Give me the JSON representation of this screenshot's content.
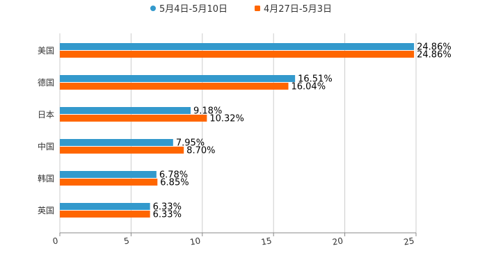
{
  "chart_data": {
    "type": "bar",
    "orientation": "horizontal",
    "categories": [
      "美国",
      "德国",
      "日本",
      "中国",
      "韩国",
      "英国"
    ],
    "series": [
      {
        "name": "5月4日-5月10日",
        "color": "#3399cc",
        "marker": "circle",
        "values": [
          24.86,
          16.51,
          9.18,
          7.95,
          6.78,
          6.33
        ],
        "labels": [
          "24.86%",
          "16.51%",
          "9.18%",
          "7.95%",
          "6.78%",
          "6.33%"
        ]
      },
      {
        "name": "4月27日-5月3日",
        "color": "#ff6600",
        "marker": "square",
        "values": [
          24.86,
          16.04,
          10.32,
          8.7,
          6.85,
          6.33
        ],
        "labels": [
          "24.86%",
          "16.04%",
          "10.32%",
          "8.70%",
          "6.85%",
          "6.33%"
        ]
      }
    ],
    "xlim": [
      0,
      25
    ],
    "xticks": [
      "0",
      "5",
      "10",
      "15",
      "20",
      "25"
    ],
    "grid": true,
    "legend": "top-center",
    "title": "",
    "xlabel": "",
    "ylabel": ""
  }
}
